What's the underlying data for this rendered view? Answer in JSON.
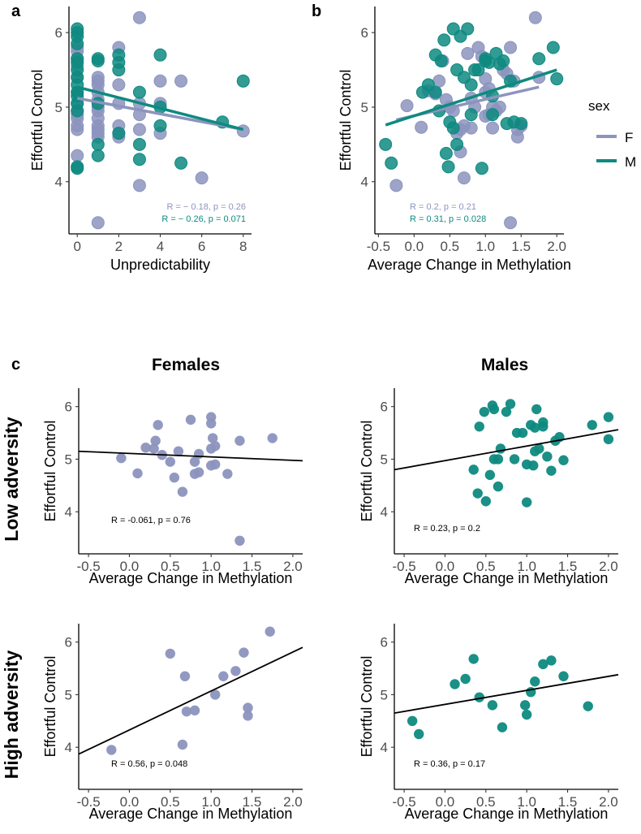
{
  "colors": {
    "female": "#8c94be",
    "male": "#0e8a80",
    "fitline": "#000000"
  },
  "legend": {
    "title": "sex",
    "entries": [
      {
        "label": "F",
        "color": "#8c94be"
      },
      {
        "label": "M",
        "color": "#0e8a80"
      }
    ]
  },
  "labels": {
    "panel_a": "a",
    "panel_b": "b",
    "panel_c": "c",
    "col_females": "Females",
    "col_males": "Males",
    "row_low": "Low adversity",
    "row_high": "High adversity"
  },
  "chart_data": [
    {
      "id": "a",
      "type": "scatter",
      "xlabel": "Unpredictability",
      "ylabel": "Effortful Control",
      "xlim": [
        -0.4,
        8.4
      ],
      "ylim": [
        3.3,
        6.35
      ],
      "xticks": [
        0,
        2,
        4,
        6,
        8
      ],
      "yticks": [
        4,
        5,
        6
      ],
      "xtick_labels": [
        "0",
        "2",
        "4",
        "6",
        "8"
      ],
      "ytick_labels": [
        "4",
        "5",
        "6"
      ],
      "series": [
        {
          "name": "F",
          "color": "#8c94be",
          "x": [
            0,
            0,
            0,
            0,
            0,
            0,
            0,
            0,
            0,
            0,
            0,
            0,
            0,
            1,
            1,
            1,
            1,
            1,
            1,
            1,
            1,
            1,
            1,
            1,
            1,
            1,
            2,
            2,
            2,
            2,
            2,
            2,
            3,
            3,
            3,
            3,
            3,
            4,
            4,
            4,
            5,
            6,
            8
          ],
          "y": [
            5.8,
            5.55,
            5.4,
            5.2,
            5.05,
            4.95,
            4.85,
            4.75,
            4.7,
            4.35,
            5.75,
            5.65,
            4.9,
            5.4,
            5.35,
            5.3,
            5.2,
            5.1,
            5.0,
            4.95,
            4.85,
            4.75,
            4.7,
            4.65,
            4.6,
            3.45,
            5.8,
            5.3,
            5.05,
            4.75,
            4.65,
            4.6,
            6.2,
            5.05,
            4.9,
            4.7,
            3.95,
            5.35,
            5.05,
            4.65,
            5.35,
            4.05,
            4.68
          ],
          "fit": {
            "x": [
              0,
              8
            ],
            "y": [
              5.12,
              4.7
            ]
          },
          "stat_text": "R = − 0.18, p = 0.26"
        },
        {
          "name": "M",
          "color": "#0e8a80",
          "x": [
            0,
            0,
            0,
            0,
            0,
            0,
            0,
            0,
            0,
            0,
            0,
            0,
            0,
            0,
            0,
            1,
            1,
            1,
            1,
            1,
            2,
            2,
            2,
            2,
            3,
            3,
            3,
            4,
            4,
            4,
            5,
            7,
            8
          ],
          "y": [
            6.05,
            6.0,
            5.95,
            5.85,
            5.65,
            5.6,
            5.5,
            5.4,
            5.3,
            5.2,
            5.15,
            5.05,
            4.95,
            4.2,
            4.18,
            5.65,
            5.62,
            5.05,
            4.5,
            4.35,
            5.7,
            5.6,
            5.5,
            4.65,
            5.2,
            4.5,
            4.3,
            5.7,
            4.75,
            5.0,
            4.25,
            4.8,
            5.35
          ],
          "fit": {
            "x": [
              0,
              8
            ],
            "y": [
              5.27,
              4.7
            ]
          },
          "stat_text": "R = − 0.26, p = 0.071"
        }
      ]
    },
    {
      "id": "b",
      "type": "scatter",
      "xlabel": "Average Change in Methylation",
      "ylabel": "Effortful Control",
      "xlim": [
        -0.55,
        2.1
      ],
      "ylim": [
        3.3,
        6.35
      ],
      "xticks": [
        -0.5,
        0,
        0.5,
        1,
        1.5,
        2
      ],
      "yticks": [
        4,
        5,
        6
      ],
      "xtick_labels": [
        "-0.5",
        "0.0",
        "0.5",
        "1.0",
        "1.5",
        "2.0"
      ],
      "ytick_labels": [
        "4",
        "5",
        "6"
      ],
      "series": [
        {
          "name": "F",
          "color": "#8c94be",
          "x": [
            -0.25,
            -0.1,
            0.1,
            0.2,
            0.3,
            0.35,
            0.4,
            0.45,
            0.5,
            0.55,
            0.6,
            0.65,
            0.7,
            0.75,
            0.8,
            0.8,
            0.85,
            0.9,
            0.95,
            1.0,
            1.0,
            1.0,
            1.05,
            1.05,
            1.1,
            1.15,
            1.2,
            1.25,
            1.3,
            1.35,
            1.4,
            1.45,
            1.5,
            1.7,
            1.75,
            0.7,
            0.65,
            1.35,
            1.45,
            1.1
          ],
          "y": [
            3.95,
            5.02,
            4.73,
            5.22,
            5.18,
            5.35,
            5.62,
            5.1,
            5.0,
            4.95,
            4.65,
            4.4,
            4.75,
            5.72,
            4.72,
            5.12,
            5.0,
            5.8,
            5.68,
            5.2,
            5.38,
            4.88,
            4.9,
            5.25,
            4.72,
            4.95,
            5.0,
            5.5,
            5.45,
            3.45,
            5.35,
            4.6,
            4.75,
            6.2,
            5.4,
            4.05,
            4.7,
            5.8,
            4.7,
            5.0
          ],
          "fit": {
            "x": [
              -0.25,
              1.75
            ],
            "y": [
              4.83,
              5.27
            ]
          },
          "stat_text": "R = 0.2, p = 0.21"
        },
        {
          "name": "M",
          "color": "#0e8a80",
          "x": [
            -0.4,
            -0.32,
            0.12,
            0.2,
            0.3,
            0.35,
            0.38,
            0.42,
            0.45,
            0.48,
            0.5,
            0.55,
            0.55,
            0.6,
            0.65,
            0.7,
            0.75,
            0.8,
            0.85,
            0.9,
            0.95,
            1.0,
            1.0,
            1.05,
            1.1,
            1.1,
            1.15,
            1.2,
            1.25,
            1.3,
            1.35,
            1.4,
            1.5,
            1.75,
            1.95,
            2.0,
            0.8,
            0.3,
            0.6
          ],
          "y": [
            4.5,
            4.25,
            5.2,
            5.3,
            5.7,
            4.95,
            5.62,
            5.9,
            4.38,
            4.2,
            4.8,
            6.05,
            4.72,
            4.5,
            5.95,
            5.4,
            6.05,
            4.9,
            5.5,
            5.5,
            4.18,
            5.65,
            5.62,
            5.6,
            4.9,
            5.15,
            5.72,
            5.58,
            5.62,
            4.78,
            5.35,
            4.8,
            4.78,
            5.65,
            5.8,
            5.38,
            5.3,
            5.2,
            5.5
          ],
          "fit": {
            "x": [
              -0.4,
              2.0
            ],
            "y": [
              4.76,
              5.5
            ]
          },
          "stat_text": "R = 0.31, p = 0.028"
        }
      ]
    },
    {
      "id": "c-low-females",
      "type": "scatter",
      "xlabel": "Average Change in Methylation",
      "ylabel": "Effortful Control",
      "xlim": [
        -0.62,
        2.12
      ],
      "ylim": [
        3.2,
        6.35
      ],
      "xticks": [
        -0.5,
        0,
        0.5,
        1,
        1.5,
        2
      ],
      "yticks": [
        4,
        5,
        6
      ],
      "xtick_labels": [
        "-0.5",
        "0.0",
        "0.5",
        "1.0",
        "1.5",
        "2.0"
      ],
      "ytick_labels": [
        "4",
        "5",
        "6"
      ],
      "series": [
        {
          "name": "F",
          "color": "#8c94be",
          "x": [
            -0.1,
            0.1,
            0.2,
            0.3,
            0.32,
            0.35,
            0.4,
            0.5,
            0.55,
            0.6,
            0.65,
            0.75,
            0.8,
            0.8,
            0.85,
            0.85,
            1.0,
            1.0,
            1.0,
            1.0,
            1.02,
            1.05,
            1.05,
            1.2,
            1.35,
            1.35,
            1.75
          ],
          "y": [
            5.02,
            4.73,
            5.22,
            5.2,
            5.35,
            5.65,
            5.08,
            4.95,
            4.65,
            5.15,
            4.38,
            5.75,
            4.72,
            4.95,
            4.75,
            5.1,
            5.8,
            5.68,
            4.88,
            5.2,
            5.4,
            4.9,
            5.25,
            4.72,
            5.35,
            3.45,
            5.4
          ],
          "fit": {
            "x": [
              -0.62,
              2.12
            ],
            "y": [
              5.15,
              4.97
            ]
          },
          "stat_text": "R = -0.061, p = 0.76"
        }
      ]
    },
    {
      "id": "c-low-males",
      "type": "scatter",
      "xlabel": "Average Change in Methylation",
      "ylabel": "Effortful Control",
      "xlim": [
        -0.62,
        2.12
      ],
      "ylim": [
        3.2,
        6.35
      ],
      "xticks": [
        -0.5,
        0,
        0.5,
        1,
        1.5,
        2
      ],
      "yticks": [
        4,
        5,
        6
      ],
      "xtick_labels": [
        "-0.5",
        "0.0",
        "0.5",
        "1.0",
        "1.5",
        "2.0"
      ],
      "ytick_labels": [
        "4",
        "5",
        "6"
      ],
      "series": [
        {
          "name": "M",
          "color": "#0e8a80",
          "x": [
            0.35,
            0.4,
            0.42,
            0.48,
            0.5,
            0.55,
            0.58,
            0.6,
            0.65,
            0.68,
            0.75,
            0.8,
            0.85,
            0.88,
            0.95,
            1.0,
            1.0,
            1.05,
            1.08,
            1.1,
            1.1,
            1.12,
            1.15,
            1.2,
            1.25,
            1.3,
            1.35,
            1.4,
            1.45,
            1.8,
            2.0,
            2.0,
            0.65,
            0.6,
            1.2
          ],
          "y": [
            4.8,
            4.35,
            5.62,
            5.9,
            4.2,
            4.7,
            6.02,
            5.95,
            4.48,
            5.2,
            5.9,
            6.05,
            5.0,
            5.5,
            5.5,
            4.18,
            4.9,
            5.65,
            4.88,
            5.15,
            5.6,
            5.95,
            5.2,
            5.7,
            5.05,
            4.78,
            5.35,
            5.42,
            4.98,
            5.65,
            5.8,
            5.38,
            5.0,
            5.0,
            5.62
          ],
          "fit": {
            "x": [
              -0.62,
              2.12
            ],
            "y": [
              4.8,
              5.56
            ]
          },
          "stat_text": "R = 0.23, p = 0.2"
        }
      ]
    },
    {
      "id": "c-high-females",
      "type": "scatter",
      "xlabel": "Average Change in Methylation",
      "ylabel": "Effortful Control",
      "xlim": [
        -0.62,
        2.12
      ],
      "ylim": [
        3.2,
        6.35
      ],
      "xticks": [
        -0.5,
        0,
        0.5,
        1,
        1.5,
        2
      ],
      "yticks": [
        4,
        5,
        6
      ],
      "xtick_labels": [
        "-0.5",
        "0.0",
        "0.5",
        "1.0",
        "1.5",
        "2.0"
      ],
      "ytick_labels": [
        "4",
        "5",
        "6"
      ],
      "series": [
        {
          "name": "F",
          "color": "#8c94be",
          "x": [
            -0.22,
            0.5,
            0.65,
            0.68,
            0.7,
            0.8,
            1.05,
            1.15,
            1.3,
            1.4,
            1.45,
            1.45,
            1.72
          ],
          "y": [
            3.95,
            5.78,
            4.05,
            5.35,
            4.68,
            4.7,
            5.0,
            5.35,
            5.45,
            5.8,
            4.75,
            4.6,
            6.2
          ],
          "fit": {
            "x": [
              -0.62,
              2.12
            ],
            "y": [
              3.87,
              5.9
            ]
          },
          "stat_text": "R = 0.56, p = 0.048"
        }
      ]
    },
    {
      "id": "c-high-males",
      "type": "scatter",
      "xlabel": "Average Change in Methylation",
      "ylabel": "Effortful Control",
      "xlim": [
        -0.62,
        2.12
      ],
      "ylim": [
        3.2,
        6.35
      ],
      "xticks": [
        -0.5,
        0,
        0.5,
        1,
        1.5,
        2
      ],
      "yticks": [
        4,
        5,
        6
      ],
      "xtick_labels": [
        "-0.5",
        "0.0",
        "0.5",
        "1.0",
        "1.5",
        "2.0"
      ],
      "ytick_labels": [
        "4",
        "5",
        "6"
      ],
      "series": [
        {
          "name": "M",
          "color": "#0e8a80",
          "x": [
            -0.4,
            -0.32,
            0.12,
            0.25,
            0.35,
            0.42,
            0.58,
            0.7,
            0.98,
            1.0,
            1.05,
            1.1,
            1.2,
            1.3,
            1.45,
            1.75
          ],
          "y": [
            4.5,
            4.25,
            5.2,
            5.3,
            5.68,
            4.95,
            4.8,
            4.38,
            4.8,
            4.62,
            5.05,
            5.25,
            5.58,
            5.65,
            5.35,
            4.78
          ],
          "fit": {
            "x": [
              -0.62,
              2.12
            ],
            "y": [
              4.65,
              5.38
            ]
          },
          "stat_text": "R = 0.36, p = 0.17"
        }
      ]
    }
  ]
}
